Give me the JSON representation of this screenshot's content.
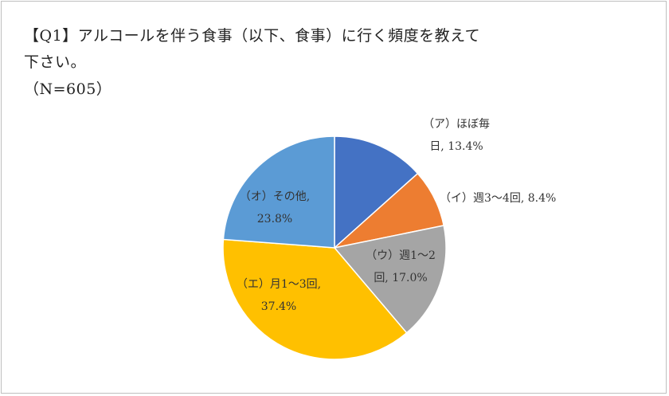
{
  "chart_data": {
    "type": "pie",
    "title": [
      "【Q1】アルコールを伴う食事（以下、食事）に行く頻度を教えて",
      "下さい。",
      "（N=605）"
    ],
    "slices": [
      {
        "label": "（ア）ほぼ毎日",
        "value": 13.4,
        "display": [
          "（ア）ほぼ毎",
          "日, 13.4%"
        ],
        "color": "#4472C4"
      },
      {
        "label": "（イ）週3～4回",
        "value": 8.4,
        "display": [
          "（イ）週3～4回, 8.4%"
        ],
        "color": "#ED7D31"
      },
      {
        "label": "（ウ）週1～2回",
        "value": 17.0,
        "display": [
          "（ウ）週1～2",
          "回, 17.0%"
        ],
        "color": "#A5A5A5"
      },
      {
        "label": "（エ）月1～3回",
        "value": 37.4,
        "display": [
          "（エ）月1～3回,",
          "37.4%"
        ],
        "color": "#FFC000"
      },
      {
        "label": "（オ）その他",
        "value": 23.8,
        "display": [
          "（オ）その他,",
          "23.8%"
        ],
        "color": "#5B9BD5"
      }
    ],
    "start_angle": "12 o'clock",
    "direction": "clockwise",
    "legend": "none"
  }
}
